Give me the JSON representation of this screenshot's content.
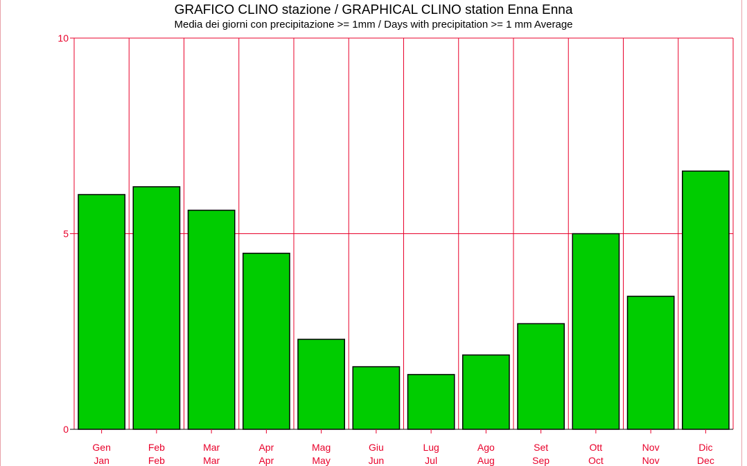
{
  "chart_data": {
    "type": "bar",
    "title": "GRAFICO CLINO stazione / GRAPHICAL CLINO station Enna Enna",
    "subtitle": "Media dei giorni con precipitazione >=  1mm / Days with precipitation >= 1 mm Average",
    "categories_it": [
      "Gen",
      "Feb",
      "Mar",
      "Apr",
      "Mag",
      "Giu",
      "Lug",
      "Ago",
      "Set",
      "Ott",
      "Nov",
      "Dic"
    ],
    "categories_en": [
      "Jan",
      "Feb",
      "Mar",
      "Apr",
      "May",
      "Jun",
      "Jul",
      "Aug",
      "Sep",
      "Oct",
      "Nov",
      "Dec"
    ],
    "values": [
      6.0,
      6.2,
      5.6,
      4.5,
      2.3,
      1.6,
      1.4,
      1.9,
      2.7,
      5.0,
      3.4,
      6.6
    ],
    "ylim": [
      0,
      10
    ],
    "yticks": [
      "0",
      "5",
      "10"
    ],
    "grid": true,
    "bar_color": "#00cc00",
    "grid_color": "#e8002a"
  }
}
